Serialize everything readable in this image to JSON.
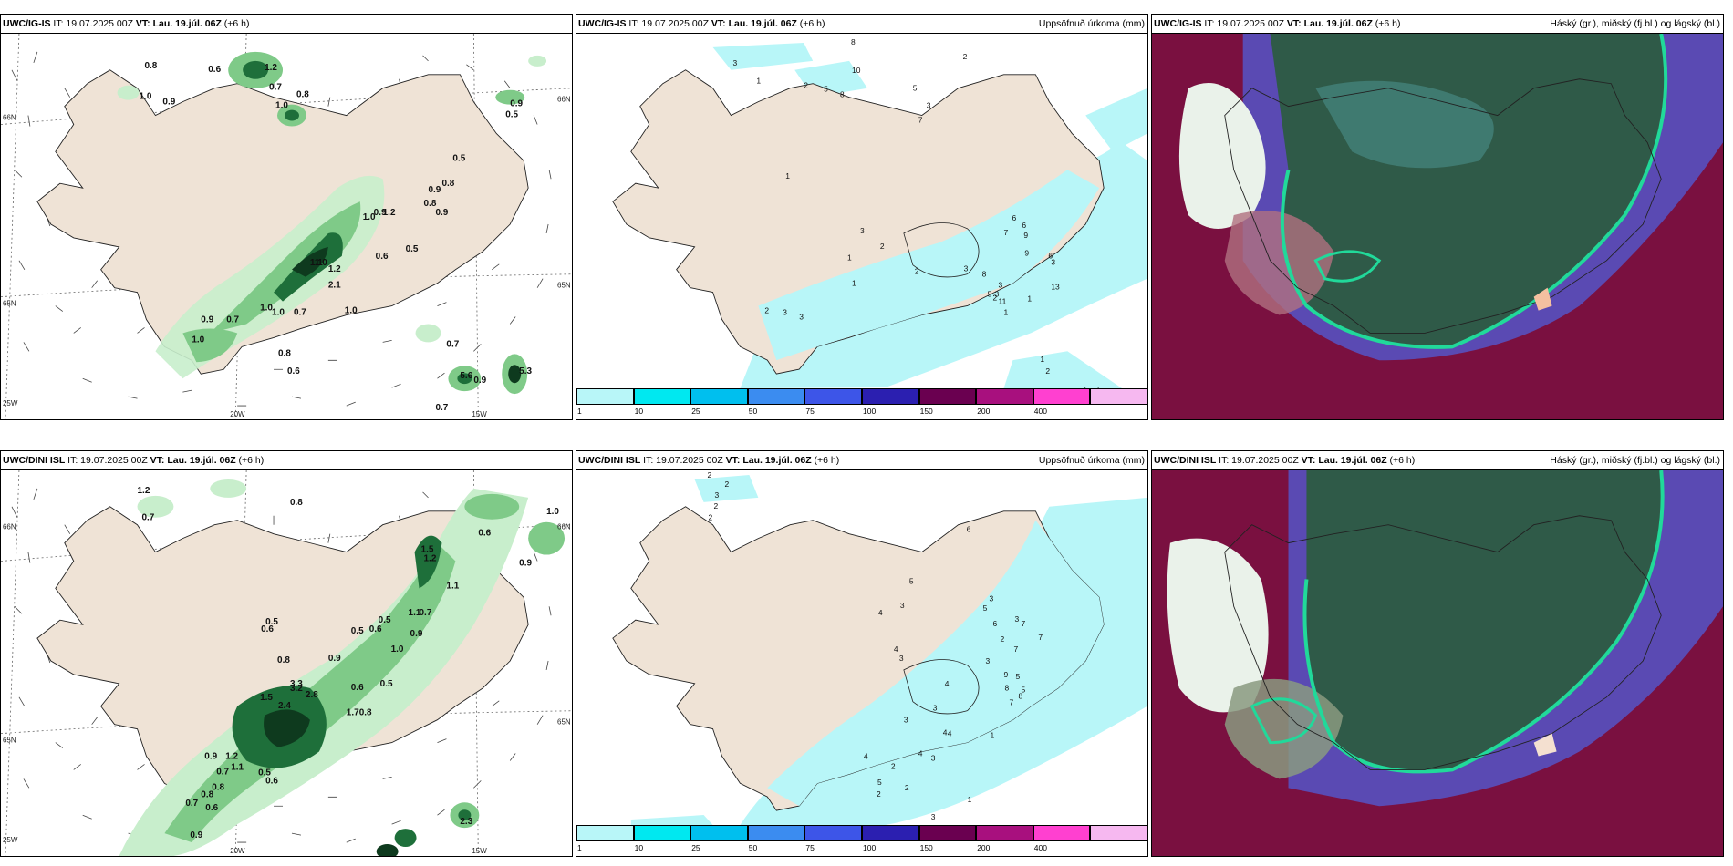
{
  "panels": [
    {
      "id": "top-left",
      "header": {
        "model": "UWC/IG-IS",
        "it": "IT: 19.07.2025 00Z",
        "vt_label": "VT:",
        "vt": "Lau. 19.júl. 06Z",
        "offset": "(+6 h)",
        "field": ""
      },
      "edge_labels": [
        "66N",
        "65N",
        "25W",
        "20W",
        "15W",
        "66N",
        "65N"
      ],
      "value_labels": [
        "0.8",
        "0.6",
        "1.0",
        "0.9",
        "1.0",
        "1.2",
        "0.7",
        "0.8",
        "0.9",
        "0.5",
        "0.5",
        "0.8",
        "0.9",
        "0.8",
        "0.9",
        "1.0",
        "0.9",
        "1.2",
        "0.5",
        "0.6",
        "1.1",
        "1.0",
        "1.2",
        "2.1",
        "1.0",
        "0.7",
        "0.9",
        "1.0",
        "1.0",
        "0.7",
        "1.0",
        "0.8",
        "0.6",
        "0.7",
        "0.9",
        "5.6",
        "5.3",
        "0.7"
      ]
    },
    {
      "id": "top-middle",
      "header": {
        "model": "UWC/IG-IS",
        "it": "IT: 19.07.2025 00Z",
        "vt_label": "VT:",
        "vt": "Lau. 19.júl. 06Z",
        "offset": "(+6 h)",
        "field": "Uppsöfnuð úrkoma (mm)"
      },
      "value_labels": [
        "8",
        "3",
        "1",
        "5",
        "10",
        "2",
        "8",
        "5",
        "7",
        "3",
        "2",
        "1",
        "3",
        "2",
        "1",
        "1",
        "2",
        "3",
        "3",
        "2",
        "6",
        "6",
        "9",
        "7",
        "9",
        "6",
        "3",
        "3",
        "8",
        "3",
        "11",
        "13",
        "5",
        "3",
        "2",
        "1",
        "1",
        "1",
        "5",
        "2",
        "1",
        "2",
        "3",
        "2",
        "2"
      ]
    },
    {
      "id": "top-right",
      "header": {
        "model": "UWC/IG-IS",
        "it": "IT: 19.07.2025 00Z",
        "vt_label": "VT:",
        "vt": "Lau. 19.júl. 06Z",
        "offset": "(+6 h)",
        "field": "Háský (gr.), miðský (fj.bl.) og lágský (bl.)"
      }
    },
    {
      "id": "bottom-left",
      "header": {
        "model": "UWC/DINI ISL",
        "it": "IT: 19.07.2025 00Z",
        "vt_label": "VT:",
        "vt": "Lau. 19.júl. 06Z",
        "offset": "(+6 h)",
        "field": ""
      },
      "edge_labels": [
        "66N",
        "65N",
        "25W",
        "20W",
        "15W",
        "66N",
        "65N"
      ],
      "value_labels": [
        "1.2",
        "0.8",
        "0.7",
        "1.0",
        "0.6",
        "1.2",
        "0.9",
        "1.5",
        "1.1",
        "0.5",
        "0.6",
        "0.5",
        "0.5",
        "0.6",
        "1.1",
        "0.7",
        "1.0",
        "0.9",
        "0.8",
        "0.9",
        "0.5",
        "0.6",
        "3.3",
        "3.2",
        "2.8",
        "1.5",
        "2.4",
        "1.7",
        "0.8",
        "1.2",
        "1.1",
        "0.9",
        "0.7",
        "0.6",
        "0.5",
        "0.8",
        "0.7",
        "0.8",
        "0.6",
        "0.9",
        "2.3"
      ]
    },
    {
      "id": "bottom-middle",
      "header": {
        "model": "UWC/DINI ISL",
        "it": "IT: 19.07.2025 00Z",
        "vt_label": "VT:",
        "vt": "Lau. 19.júl. 06Z",
        "offset": "(+6 h)",
        "field": "Uppsöfnuð úrkoma (mm)"
      },
      "value_labels": [
        "2",
        "2",
        "3",
        "2",
        "2",
        "6",
        "5",
        "3",
        "4",
        "4",
        "3",
        "3",
        "5",
        "6",
        "2",
        "3",
        "7",
        "7",
        "7",
        "5",
        "5",
        "9",
        "8",
        "7",
        "8",
        "3",
        "4",
        "1",
        "4",
        "3",
        "3",
        "4",
        "3",
        "4",
        "2",
        "4",
        "5",
        "2",
        "3",
        "2",
        "1"
      ]
    },
    {
      "id": "bottom-right",
      "header": {
        "model": "UWC/DINI ISL",
        "it": "IT: 19.07.2025 00Z",
        "vt_label": "VT:",
        "vt": "Lau. 19.júl. 06Z",
        "offset": "(+6 h)",
        "field": "Háský (gr.), miðský (fj.bl.) og lágský (bl.)"
      }
    }
  ],
  "precip_colorbar": {
    "ticks": [
      "1",
      "10",
      "25",
      "50",
      "75",
      "100",
      "150",
      "200",
      "400"
    ],
    "colors": [
      "#b8f6f8",
      "#00e8f0",
      "#00bfee",
      "#3b8cf0",
      "#3d55e8",
      "#2b1fb0",
      "#6a0050",
      "#a8107e",
      "#ff40d0",
      "#f6b8f0"
    ]
  },
  "colors": {
    "land": "#efe3d6",
    "precip_light": "#c8eecc",
    "precip_mid": "#7fca88",
    "precip_dark": "#1e6f3a",
    "precip_darkest": "#0e3a1e",
    "cloud_high": "#2f5a48",
    "cloud_mid": "#5555c8",
    "cloud_low": "#7a1040",
    "cloud_edge": "#21d99a"
  }
}
